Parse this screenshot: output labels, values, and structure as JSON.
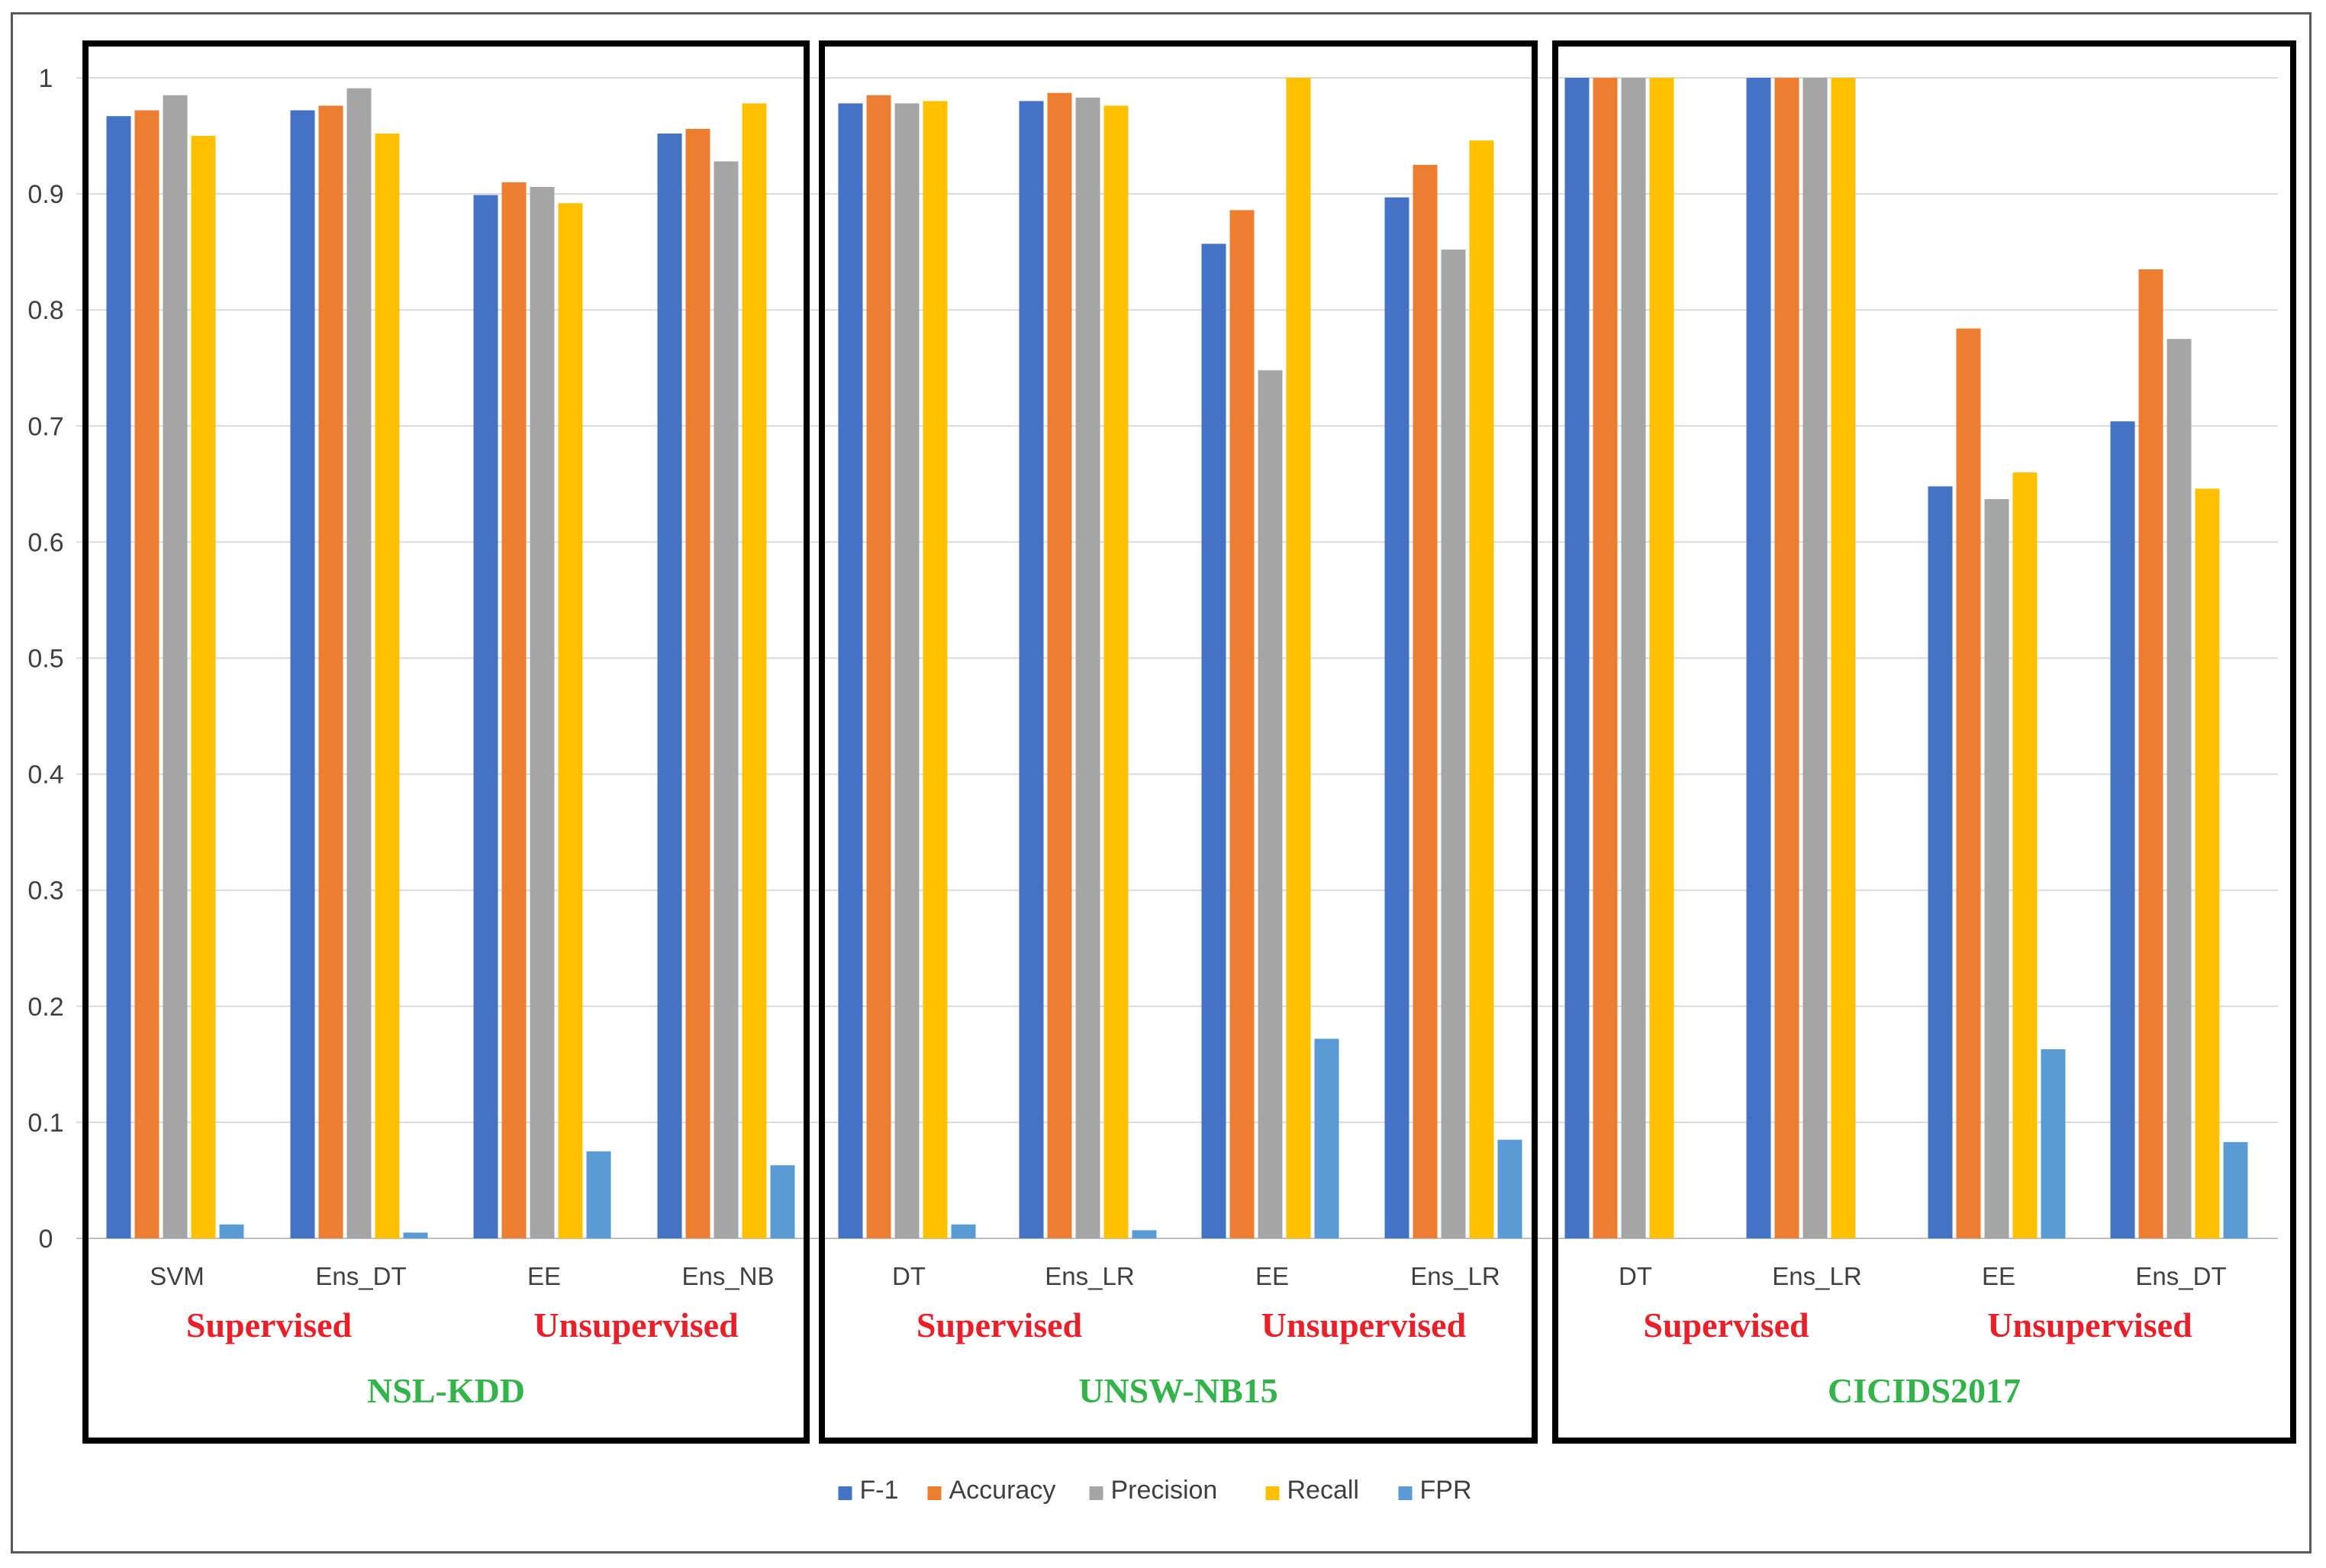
{
  "chart_data": {
    "type": "bar",
    "ylim": [
      0,
      1
    ],
    "yticks": [
      "0",
      "0.1",
      "0.2",
      "0.3",
      "0.4",
      "0.5",
      "0.6",
      "0.7",
      "0.8",
      "0.9",
      "1"
    ],
    "grid": true,
    "legend_position": "bottom",
    "series_names": [
      "F-1",
      "Accuracy",
      "Precision",
      "Recall",
      "FPR"
    ],
    "colors": {
      "F-1": "#4472c4",
      "Accuracy": "#ed7d31",
      "Precision": "#a5a5a5",
      "Recall": "#ffc000",
      "FPR": "#5b9bd5"
    },
    "datasets": [
      {
        "name": "NSL-KDD",
        "groups": [
          "Supervised",
          "Unsupervised"
        ],
        "categories": [
          {
            "label": "SVM",
            "values": {
              "F-1": 0.967,
              "Accuracy": 0.972,
              "Precision": 0.985,
              "Recall": 0.95,
              "FPR": 0.012
            }
          },
          {
            "label": "Ens_DT",
            "values": {
              "F-1": 0.972,
              "Accuracy": 0.976,
              "Precision": 0.991,
              "Recall": 0.952,
              "FPR": 0.005
            }
          },
          {
            "label": "EE",
            "values": {
              "F-1": 0.899,
              "Accuracy": 0.91,
              "Precision": 0.906,
              "Recall": 0.892,
              "FPR": 0.075
            }
          },
          {
            "label": "Ens_NB",
            "values": {
              "F-1": 0.952,
              "Accuracy": 0.956,
              "Precision": 0.928,
              "Recall": 0.978,
              "FPR": 0.063
            }
          }
        ]
      },
      {
        "name": "UNSW-NB15",
        "groups": [
          "Supervised",
          "Unsupervised"
        ],
        "categories": [
          {
            "label": "DT",
            "values": {
              "F-1": 0.978,
              "Accuracy": 0.985,
              "Precision": 0.978,
              "Recall": 0.98,
              "FPR": 0.012
            }
          },
          {
            "label": "Ens_LR",
            "values": {
              "F-1": 0.98,
              "Accuracy": 0.987,
              "Precision": 0.983,
              "Recall": 0.976,
              "FPR": 0.007
            }
          },
          {
            "label": "EE",
            "values": {
              "F-1": 0.857,
              "Accuracy": 0.886,
              "Precision": 0.748,
              "Recall": 1.0,
              "FPR": 0.172
            }
          },
          {
            "label": "Ens_LR",
            "values": {
              "F-1": 0.897,
              "Accuracy": 0.925,
              "Precision": 0.852,
              "Recall": 0.946,
              "FPR": 0.085
            }
          }
        ]
      },
      {
        "name": "CICIDS2017",
        "groups": [
          "Supervised",
          "Unsupervised"
        ],
        "categories": [
          {
            "label": "DT",
            "values": {
              "F-1": 1.0,
              "Accuracy": 1.0,
              "Precision": 1.0,
              "Recall": 1.0,
              "FPR": 0.0
            }
          },
          {
            "label": "Ens_LR",
            "values": {
              "F-1": 1.0,
              "Accuracy": 1.0,
              "Precision": 1.0,
              "Recall": 1.0,
              "FPR": 0.0
            }
          },
          {
            "label": "EE",
            "values": {
              "F-1": 0.648,
              "Accuracy": 0.784,
              "Precision": 0.637,
              "Recall": 0.66,
              "FPR": 0.163
            }
          },
          {
            "label": "Ens_DT",
            "values": {
              "F-1": 0.704,
              "Accuracy": 0.835,
              "Precision": 0.775,
              "Recall": 0.646,
              "FPR": 0.083
            }
          }
        ]
      }
    ]
  }
}
